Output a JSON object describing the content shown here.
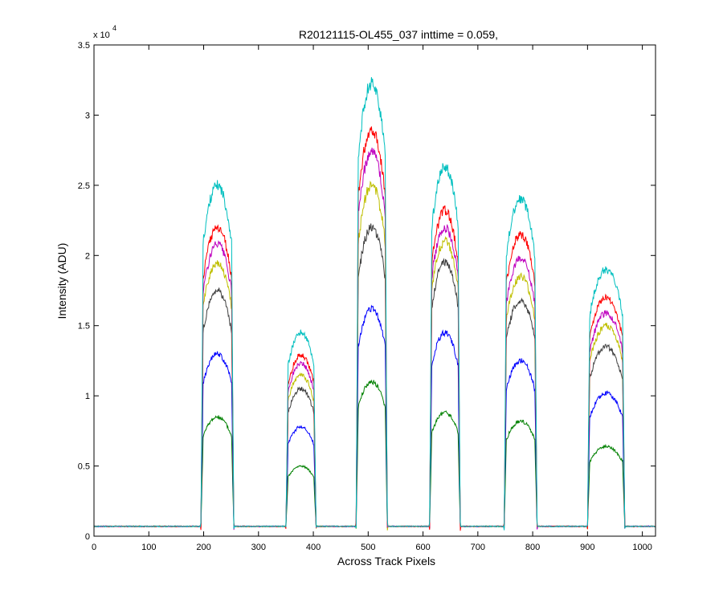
{
  "chart_data": {
    "type": "line",
    "title": "R20121115-OL455_037 inttime = 0.059,",
    "xlabel": "Across Track Pixels",
    "ylabel": "Intensity (ADU)",
    "y_exponent_label": "x 10",
    "y_exponent": "4",
    "xlim": [
      0,
      1024
    ],
    "ylim": [
      0,
      35000
    ],
    "xticks": [
      0,
      100,
      200,
      300,
      400,
      500,
      600,
      700,
      800,
      900,
      1000
    ],
    "yticks": [
      0,
      5000,
      10000,
      15000,
      20000,
      25000,
      30000,
      35000
    ],
    "xtick_labels": [
      "0",
      "100",
      "200",
      "300",
      "400",
      "500",
      "600",
      "700",
      "800",
      "900",
      "1000"
    ],
    "ytick_labels": [
      "0",
      "0.5",
      "1",
      "1.5",
      "2",
      "2.5",
      "3",
      "3.5"
    ],
    "grid": false,
    "legend": "none",
    "baseline": 700,
    "peak_regions": [
      {
        "x_start": 195,
        "x_end": 255
      },
      {
        "x_start": 350,
        "x_end": 405
      },
      {
        "x_start": 478,
        "x_end": 535
      },
      {
        "x_start": 612,
        "x_end": 668
      },
      {
        "x_start": 748,
        "x_end": 808
      },
      {
        "x_start": 900,
        "x_end": 968
      }
    ],
    "series": [
      {
        "color": "#00bfbf",
        "peak_values": [
          25000,
          14500,
          32300,
          26300,
          24000,
          19000
        ]
      },
      {
        "color": "#ff0000",
        "peak_values": [
          22000,
          12900,
          29000,
          23200,
          21500,
          17000
        ]
      },
      {
        "color": "#bf00bf",
        "peak_values": [
          20800,
          12300,
          27400,
          22000,
          19800,
          15900
        ]
      },
      {
        "color": "#bfbf00",
        "peak_values": [
          19500,
          11500,
          25000,
          21000,
          18500,
          15000
        ]
      },
      {
        "color": "#404040",
        "peak_values": [
          17500,
          10500,
          22000,
          19500,
          16800,
          13500
        ]
      },
      {
        "color": "#0000ff",
        "peak_values": [
          13000,
          7800,
          16200,
          14500,
          12500,
          10200
        ]
      },
      {
        "color": "#008000",
        "peak_values": [
          8500,
          5000,
          11000,
          8800,
          8200,
          6400
        ]
      }
    ]
  }
}
